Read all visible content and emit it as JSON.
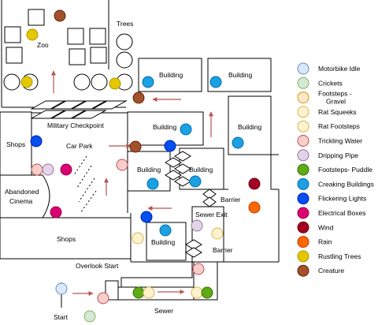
{
  "map": {
    "labels": {
      "trees": "Trees",
      "zoo": "Zoo",
      "building_1": "Building",
      "building_2": "Building",
      "building_3": "Building",
      "building_4": "Building",
      "building_5": "Building",
      "building_6": "Building",
      "building_7": "Building",
      "military_checkpoint": "Military Checkpoint",
      "shops_1": "Shops",
      "shops_2": "Shops",
      "car_park": "Car Park",
      "abandoned_cinema": "Abandoned Cinema",
      "barrier_1": "Barrier",
      "barrier_2": "Barrier",
      "sewer_exit": "Sewer Exit",
      "overlook_start": "Overlook Start",
      "sewer": "Sewer",
      "start": "Start"
    }
  },
  "legend": {
    "items": [
      {
        "label": "Motorbike Idle",
        "fill": "#dae8fc",
        "stroke": "#6c8ebf"
      },
      {
        "label": "Crickets",
        "fill": "#d5e8d4",
        "stroke": "#82b366"
      },
      {
        "label": "Footsteps - Gravel",
        "fill": "#ffe6cc",
        "stroke": "#d79b00"
      },
      {
        "label": "Rat Squeeks",
        "fill": "#fff2cc",
        "stroke": "#d6b656"
      },
      {
        "label": "Rat Footsteps",
        "fill": "#fff2cc",
        "stroke": "#d6b656"
      },
      {
        "label": "Trickling Water",
        "fill": "#f8cecc",
        "stroke": "#b85450"
      },
      {
        "label": "Dripping Pipe",
        "fill": "#e1d5e7",
        "stroke": "#9673a6"
      },
      {
        "label": "Footsteps- Puddle",
        "fill": "#60a917",
        "stroke": "#2d7600"
      },
      {
        "label": "Creaking Buildings",
        "fill": "#1ba1e2",
        "stroke": "#006eaf"
      },
      {
        "label": "Flickering Lights",
        "fill": "#0050ef",
        "stroke": "#001dbc"
      },
      {
        "label": "Electrical Boxes",
        "fill": "#d80073",
        "stroke": "#a50040"
      },
      {
        "label": "Wind",
        "fill": "#a20025",
        "stroke": "#6f0000"
      },
      {
        "label": "Rain",
        "fill": "#fa6800",
        "stroke": "#c73500"
      },
      {
        "label": "Rustling Trees",
        "fill": "#e3c800",
        "stroke": "#b09500"
      },
      {
        "label": "Creature",
        "fill": "#a0522d",
        "stroke": "#6d1f00"
      }
    ]
  },
  "colors": {
    "arrow": "#b85450"
  }
}
